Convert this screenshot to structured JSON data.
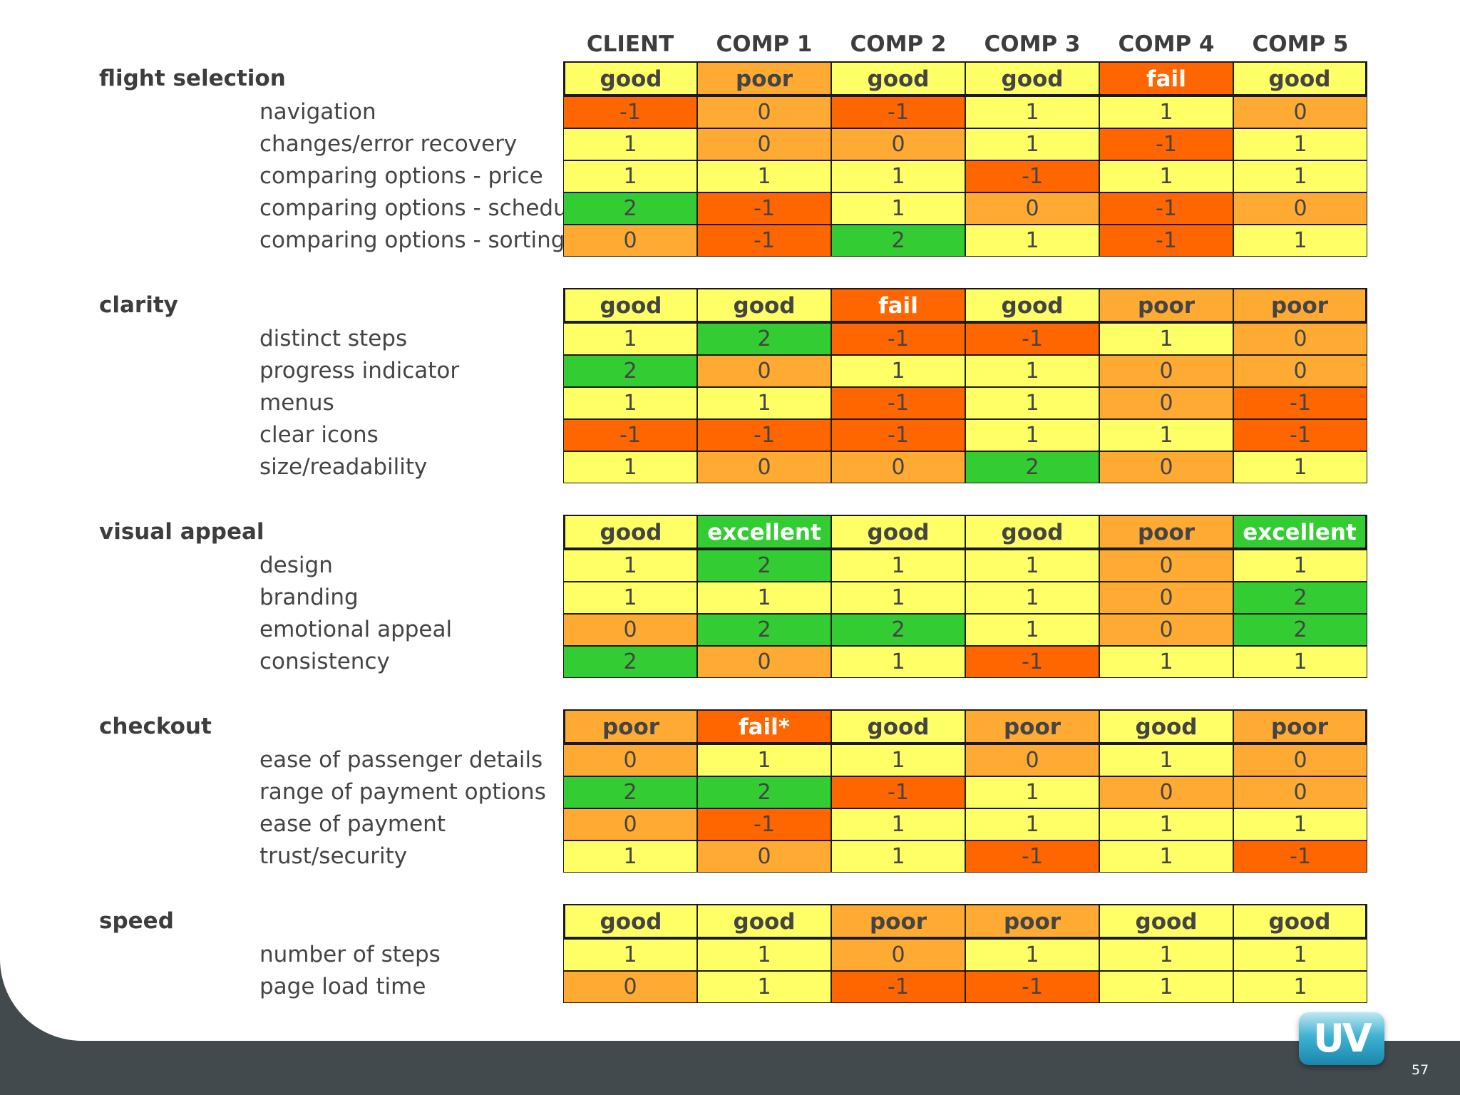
{
  "chart_data": {
    "type": "table",
    "columns": [
      "CLIENT",
      "COMP 1",
      "COMP 2",
      "COMP 3",
      "COMP 4",
      "COMP 5"
    ],
    "rating_colors": {
      "excellent": "#33cc33",
      "good": "#ffff66",
      "poor": "#ffaa33",
      "fail": "#ff6600",
      "fail*": "#ff6600"
    },
    "score_colors": {
      "2": "#33cc33",
      "1": "#ffff66",
      "0": "#ffaa33",
      "-1": "#ff6600"
    },
    "sections": [
      {
        "title": "flight selection",
        "ratings": [
          "good",
          "poor",
          "good",
          "good",
          "fail",
          "good"
        ],
        "rows": [
          {
            "label": "navigation",
            "values": [
              -1,
              0,
              -1,
              1,
              1,
              0
            ]
          },
          {
            "label": "changes/error recovery",
            "values": [
              1,
              0,
              0,
              1,
              -1,
              1
            ]
          },
          {
            "label": "comparing options - price",
            "values": [
              1,
              1,
              1,
              -1,
              1,
              1
            ]
          },
          {
            "label": "comparing options - schedule",
            "values": [
              2,
              -1,
              1,
              0,
              -1,
              0
            ]
          },
          {
            "label": "comparing options - sorting",
            "values": [
              0,
              -1,
              2,
              1,
              -1,
              1
            ]
          }
        ]
      },
      {
        "title": "clarity",
        "ratings": [
          "good",
          "good",
          "fail",
          "good",
          "poor",
          "poor"
        ],
        "rows": [
          {
            "label": "distinct steps",
            "values": [
              1,
              2,
              -1,
              -1,
              1,
              0
            ]
          },
          {
            "label": "progress indicator",
            "values": [
              2,
              0,
              1,
              1,
              0,
              0
            ]
          },
          {
            "label": "menus",
            "values": [
              1,
              1,
              -1,
              1,
              0,
              -1
            ]
          },
          {
            "label": "clear icons",
            "values": [
              -1,
              -1,
              -1,
              1,
              1,
              -1
            ]
          },
          {
            "label": "size/readability",
            "values": [
              1,
              0,
              0,
              2,
              0,
              1
            ]
          }
        ]
      },
      {
        "title": "visual appeal",
        "ratings": [
          "good",
          "excellent",
          "good",
          "good",
          "poor",
          "excellent"
        ],
        "rows": [
          {
            "label": "design",
            "values": [
              1,
              2,
              1,
              1,
              0,
              1
            ]
          },
          {
            "label": "branding",
            "values": [
              1,
              1,
              1,
              1,
              0,
              2
            ]
          },
          {
            "label": "emotional appeal",
            "values": [
              0,
              2,
              2,
              1,
              0,
              2
            ]
          },
          {
            "label": "consistency",
            "values": [
              2,
              0,
              1,
              -1,
              1,
              1
            ]
          }
        ]
      },
      {
        "title": "checkout",
        "ratings": [
          "poor",
          "fail*",
          "good",
          "poor",
          "good",
          "poor"
        ],
        "rows": [
          {
            "label": "ease of passenger details",
            "values": [
              0,
              1,
              1,
              0,
              1,
              0
            ]
          },
          {
            "label": "range of payment options",
            "values": [
              2,
              2,
              -1,
              1,
              0,
              0
            ]
          },
          {
            "label": "ease of payment",
            "values": [
              0,
              -1,
              1,
              1,
              1,
              1
            ]
          },
          {
            "label": "trust/security",
            "values": [
              1,
              0,
              1,
              -1,
              1,
              -1
            ]
          }
        ]
      },
      {
        "title": "speed",
        "ratings": [
          "good",
          "good",
          "poor",
          "poor",
          "good",
          "good"
        ],
        "rows": [
          {
            "label": "number of steps",
            "values": [
              1,
              1,
              0,
              1,
              1,
              1
            ]
          },
          {
            "label": "page load time",
            "values": [
              0,
              1,
              -1,
              -1,
              1,
              1
            ]
          }
        ]
      }
    ]
  },
  "footer": {
    "logo_text": "UV",
    "page_number": "57"
  }
}
